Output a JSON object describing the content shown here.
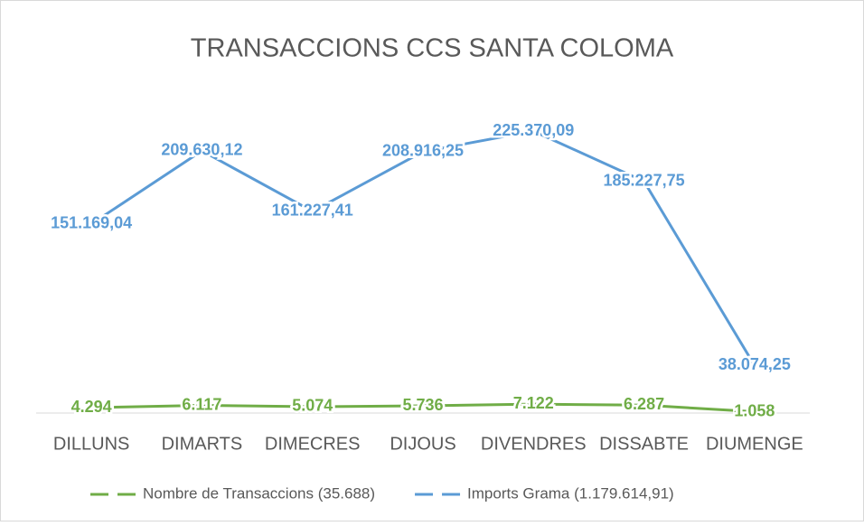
{
  "chart_data": {
    "type": "line",
    "title": "TRANSACCIONS CCS SANTA COLOMA",
    "categories": [
      "DILLUNS",
      "DIMARTS",
      "DIMECRES",
      "DIJOUS",
      "DIVENDRES",
      "DISSABTE",
      "DIUMENGE"
    ],
    "series": [
      {
        "name": "Nombre de Transaccions (35.688)",
        "color": "#70ad47",
        "values": [
          4294,
          6117,
          5074,
          5736,
          7122,
          6287,
          1058
        ],
        "value_labels": [
          "4.294",
          "6.117",
          "5.074",
          "5.736",
          "7.122",
          "6.287",
          "1.058"
        ]
      },
      {
        "name": "Imports Grama (1.179.614,91)",
        "color": "#5b9bd5",
        "values": [
          151169.04,
          209630.12,
          161227.41,
          208916.25,
          225370.09,
          185227.75,
          38074.25
        ],
        "value_labels": [
          "151.169,04",
          "209.630,12",
          "161.227,41",
          "208.916,25",
          "225.370,09",
          "185.227,75",
          "38.074,25"
        ]
      }
    ],
    "ylim": [
      0,
      250000
    ],
    "legend": "bottom"
  }
}
